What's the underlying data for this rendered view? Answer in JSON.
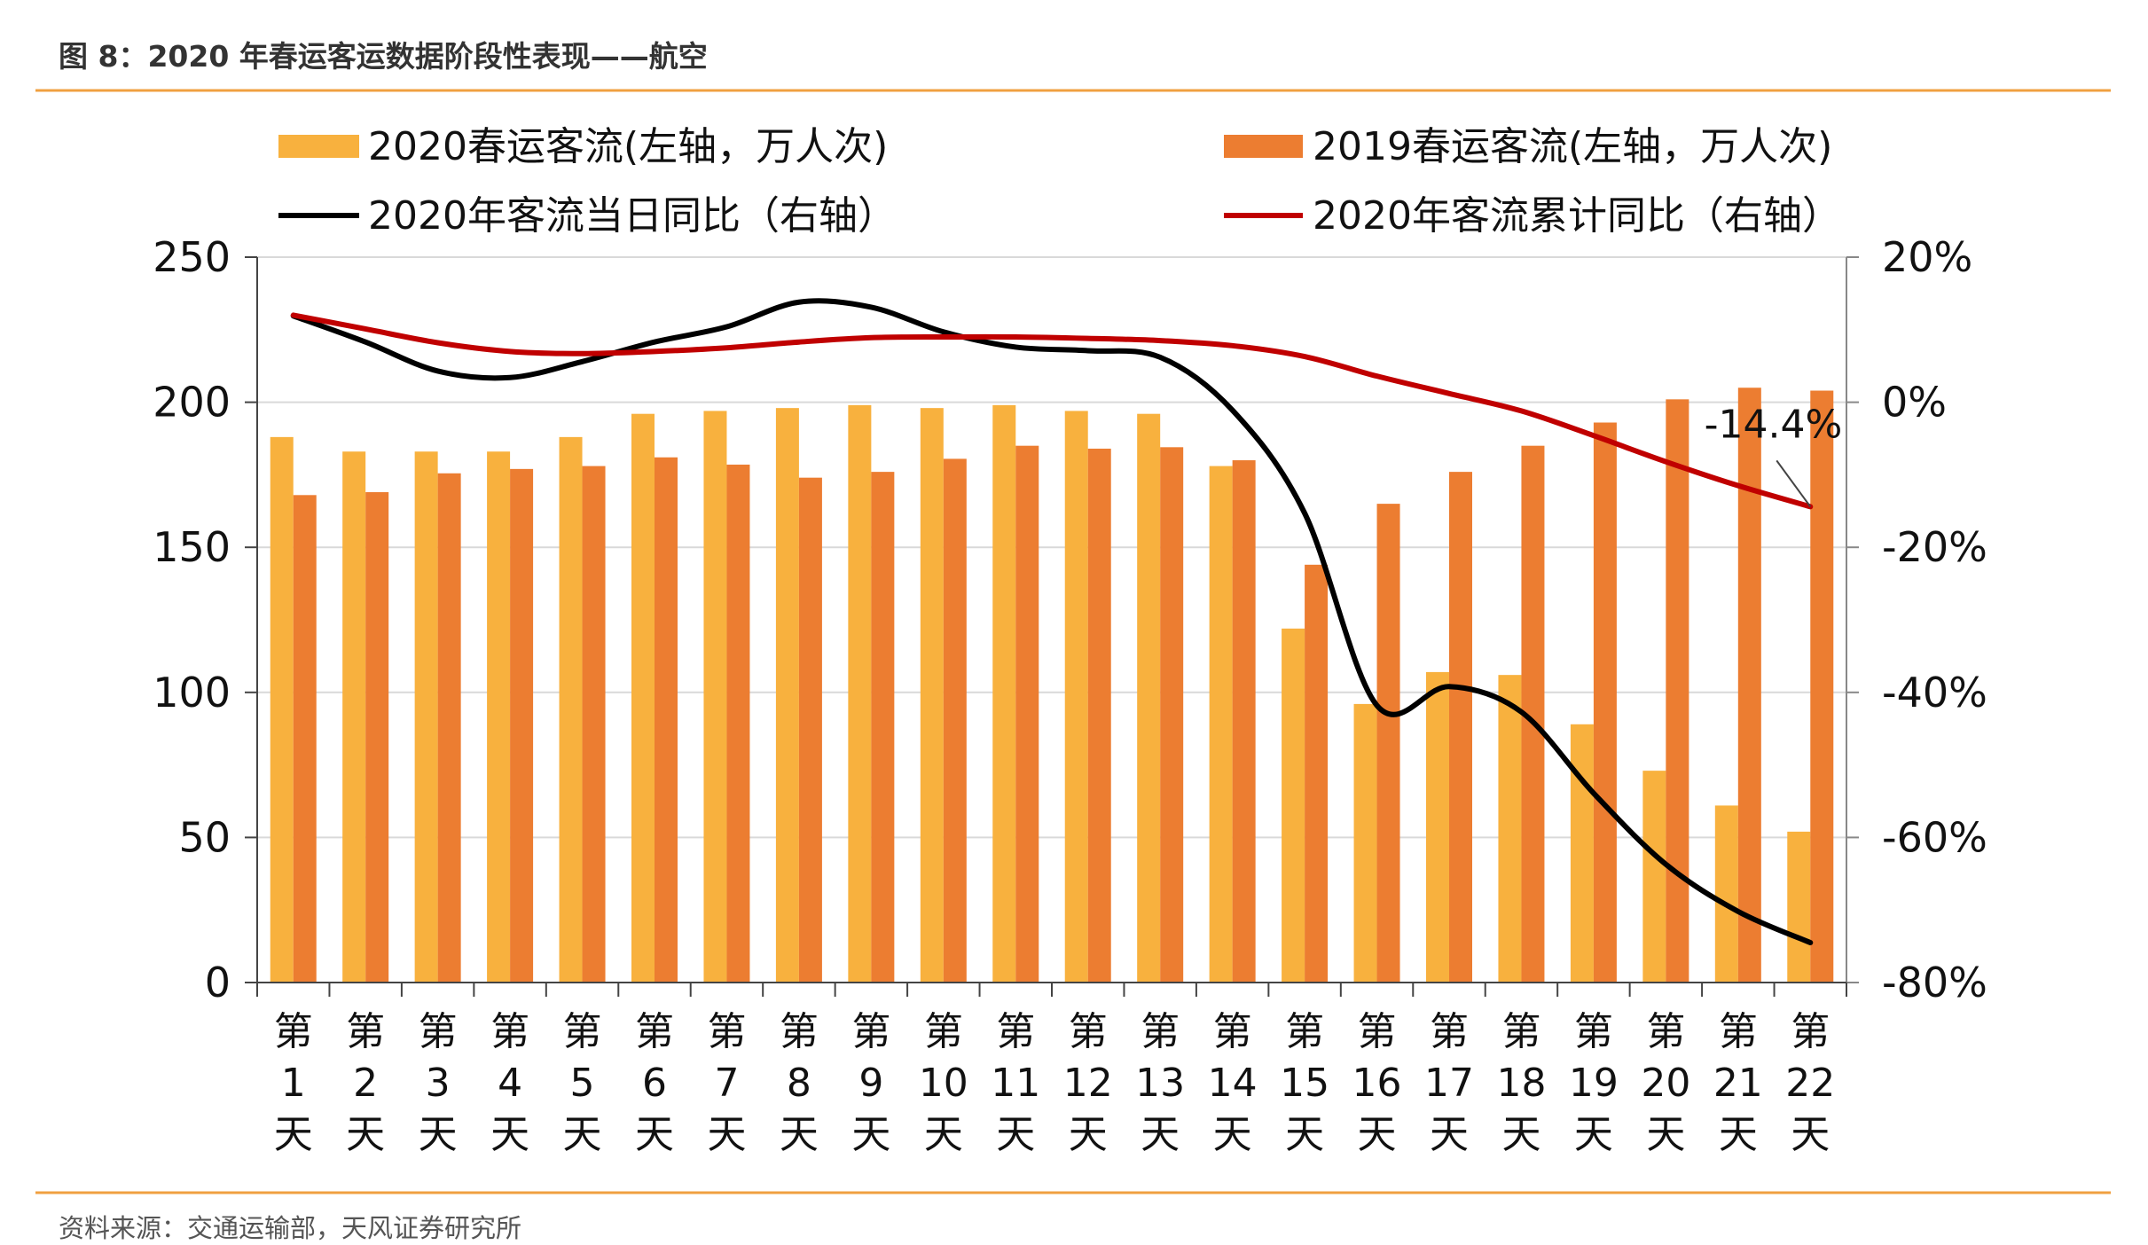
{
  "header": {
    "title": "图 8：2020 年春运客运数据阶段性表现——航空"
  },
  "footer": {
    "source": "资料来源：交通运输部，天风证券研究所"
  },
  "colors": {
    "accent_rule": "#F0A040",
    "bar_2020": "#F8B13E",
    "bar_2019": "#EC7D31",
    "line_daily": "#000000",
    "line_cum": "#C00000",
    "grid": "#D9D9D9"
  },
  "chart_data": {
    "type": "bar+line",
    "categories_prefix": "第",
    "categories_suffix": "天",
    "categories": [
      "1",
      "2",
      "3",
      "4",
      "5",
      "6",
      "7",
      "8",
      "9",
      "10",
      "11",
      "12",
      "13",
      "14",
      "15",
      "16",
      "17",
      "18",
      "19",
      "20",
      "21",
      "22"
    ],
    "left_axis": {
      "ylim": [
        0,
        250
      ],
      "ticks": [
        "0",
        "50",
        "100",
        "150",
        "200",
        "250"
      ]
    },
    "right_axis": {
      "ylim": [
        -80,
        20
      ],
      "ticks": [
        "-80%",
        "-60%",
        "-40%",
        "-20%",
        "0%",
        "20%"
      ]
    },
    "grid": true,
    "legend_position": "top",
    "series": [
      {
        "name": "2020春运客流(左轴，万人次)",
        "type": "bar",
        "axis": "left",
        "values": [
          188,
          183,
          183,
          183,
          188,
          196,
          197,
          198,
          199,
          198,
          199,
          197,
          196,
          178,
          122,
          96,
          107,
          106,
          89,
          73,
          61,
          52
        ]
      },
      {
        "name": "2019春运客流(左轴，万人次)",
        "type": "bar",
        "axis": "left",
        "values": [
          168,
          169,
          175.5,
          177,
          178,
          181,
          178.5,
          174,
          176,
          180.5,
          185,
          184,
          184.5,
          180,
          144,
          165,
          176,
          185,
          193,
          201,
          205,
          204
        ]
      },
      {
        "name": "2020年客流当日同比（右轴）",
        "type": "line",
        "axis": "right",
        "values": [
          11.9,
          8.3,
          4.3,
          3.4,
          5.6,
          8.3,
          10.4,
          13.8,
          13.1,
          9.7,
          7.6,
          7.1,
          6.2,
          -1.1,
          -15.3,
          -41.8,
          -39.2,
          -42.7,
          -53.9,
          -63.7,
          -70.2,
          -74.5
        ]
      },
      {
        "name": "2020年客流累计同比（右轴）",
        "type": "line",
        "axis": "right",
        "values": [
          12,
          10.1,
          8.2,
          7,
          6.7,
          7,
          7.5,
          8.3,
          8.9,
          9,
          9,
          8.8,
          8.5,
          7.8,
          6.3,
          3.6,
          1.2,
          -1.2,
          -4.6,
          -8.2,
          -11.5,
          -14.4
        ]
      }
    ],
    "annotations": [
      {
        "text": "-14.4%",
        "series": 3,
        "category": "22"
      }
    ]
  }
}
